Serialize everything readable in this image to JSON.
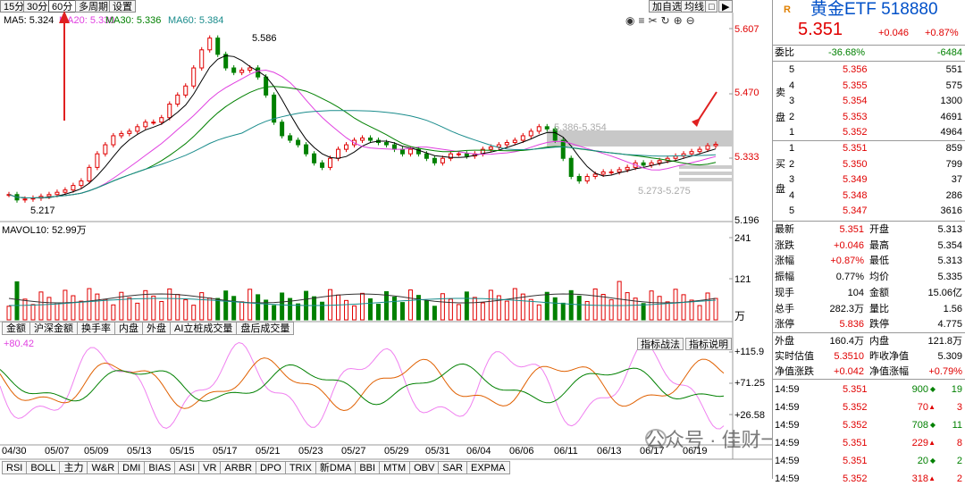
{
  "periods": [
    "15分",
    "30分",
    "60分",
    "多周期",
    "设置"
  ],
  "selected_period": "60分",
  "ma_legend": [
    {
      "label": "MA5: 5.324",
      "color": "#000000"
    },
    {
      "label": "MA20: 5.330",
      "color": "#e040e0"
    },
    {
      "label": "MA30: 5.336",
      "color": "#008000"
    },
    {
      "label": "MA60: 5.384",
      "color": "#1a8c8c"
    }
  ],
  "toolbar_right": [
    "加自选",
    "均线"
  ],
  "price_axis": [
    "5.607",
    "5.470",
    "5.333",
    "5.196"
  ],
  "annotations": {
    "high": "5.586",
    "low": "5.217",
    "range1": "5.386-5.354",
    "range2": "5.273-5.275"
  },
  "vol_label": "MAVOL10: 52.99万",
  "vol_axis": [
    "241",
    "121"
  ],
  "vol_unit": "万",
  "vol_tabs": [
    "金额",
    "沪深金额",
    "换手率",
    "内盘",
    "外盘",
    "AI立桩成交量",
    "盘后成交量"
  ],
  "ind_buttons": [
    "指标战法",
    "指标说明"
  ],
  "ind_label": "+80.42",
  "ind_axis": [
    "+115.9",
    "+71.25",
    "+26.58"
  ],
  "dates": [
    "04/30",
    "05/07",
    "05/09",
    "05/13",
    "05/15",
    "05/17",
    "05/21",
    "05/23",
    "05/27",
    "05/29",
    "05/31",
    "06/04",
    "06/06",
    "06/11",
    "06/13",
    "06/17",
    "06/19"
  ],
  "indicator_tabs": [
    "RSI",
    "BOLL",
    "主力",
    "W&R",
    "DMI",
    "BIAS",
    "ASI",
    "VR",
    "ARBR",
    "DPO",
    "TRIX",
    "新DMA",
    "BBI",
    "MTM",
    "OBV",
    "SAR",
    "EXPMA"
  ],
  "watermark": "公众号 · 佳财一分钟",
  "quote": {
    "tag": "R",
    "name": "黄金ETF 518880",
    "price": "5.351",
    "change": "+0.046",
    "change_pct": "+0.87%",
    "weibi_label": "委比",
    "weibi_pct": "-36.68%",
    "weibi_val": "-6484",
    "sell_label": "卖盘",
    "buy_label": "买盘",
    "asks": [
      {
        "n": "5",
        "p": "5.356",
        "v": "551"
      },
      {
        "n": "4",
        "p": "5.355",
        "v": "575"
      },
      {
        "n": "3",
        "p": "5.354",
        "v": "1300"
      },
      {
        "n": "2",
        "p": "5.353",
        "v": "4691"
      },
      {
        "n": "1",
        "p": "5.352",
        "v": "4964"
      }
    ],
    "bids": [
      {
        "n": "1",
        "p": "5.351",
        "v": "859"
      },
      {
        "n": "2",
        "p": "5.350",
        "v": "799"
      },
      {
        "n": "3",
        "p": "5.349",
        "v": "37"
      },
      {
        "n": "4",
        "p": "5.348",
        "v": "286"
      },
      {
        "n": "5",
        "p": "5.347",
        "v": "3616"
      }
    ],
    "stats": [
      [
        "最新",
        "5.351",
        "开盘",
        "5.313"
      ],
      [
        "涨跌",
        "+0.046",
        "最高",
        "5.354"
      ],
      [
        "涨幅",
        "+0.87%",
        "最低",
        "5.313"
      ],
      [
        "振幅",
        "0.77%",
        "均价",
        "5.335"
      ],
      [
        "现手",
        "104",
        "金额",
        "15.06亿"
      ],
      [
        "总手",
        "282.3万",
        "量比",
        "1.56"
      ],
      [
        "涨停",
        "5.836",
        "跌停",
        "4.775"
      ]
    ],
    "stats2": [
      [
        "外盘",
        "160.4万",
        "内盘",
        "121.8万"
      ],
      [
        "实时估值",
        "5.3510",
        "昨收净值",
        "5.309"
      ],
      [
        "净值涨跌",
        "+0.042",
        "净值涨幅",
        "+0.79%"
      ]
    ],
    "ticks": [
      {
        "t": "14:59",
        "p": "5.351",
        "v": "900",
        "d": "19"
      },
      {
        "t": "14:59",
        "p": "5.352",
        "v": "70",
        "d": "3"
      },
      {
        "t": "14:59",
        "p": "5.352",
        "v": "708",
        "d": "11"
      },
      {
        "t": "14:59",
        "p": "5.351",
        "v": "229",
        "d": "8"
      },
      {
        "t": "14:59",
        "p": "5.351",
        "v": "20",
        "d": "2"
      },
      {
        "t": "14:59",
        "p": "5.352",
        "v": "318",
        "d": "2"
      }
    ]
  }
}
